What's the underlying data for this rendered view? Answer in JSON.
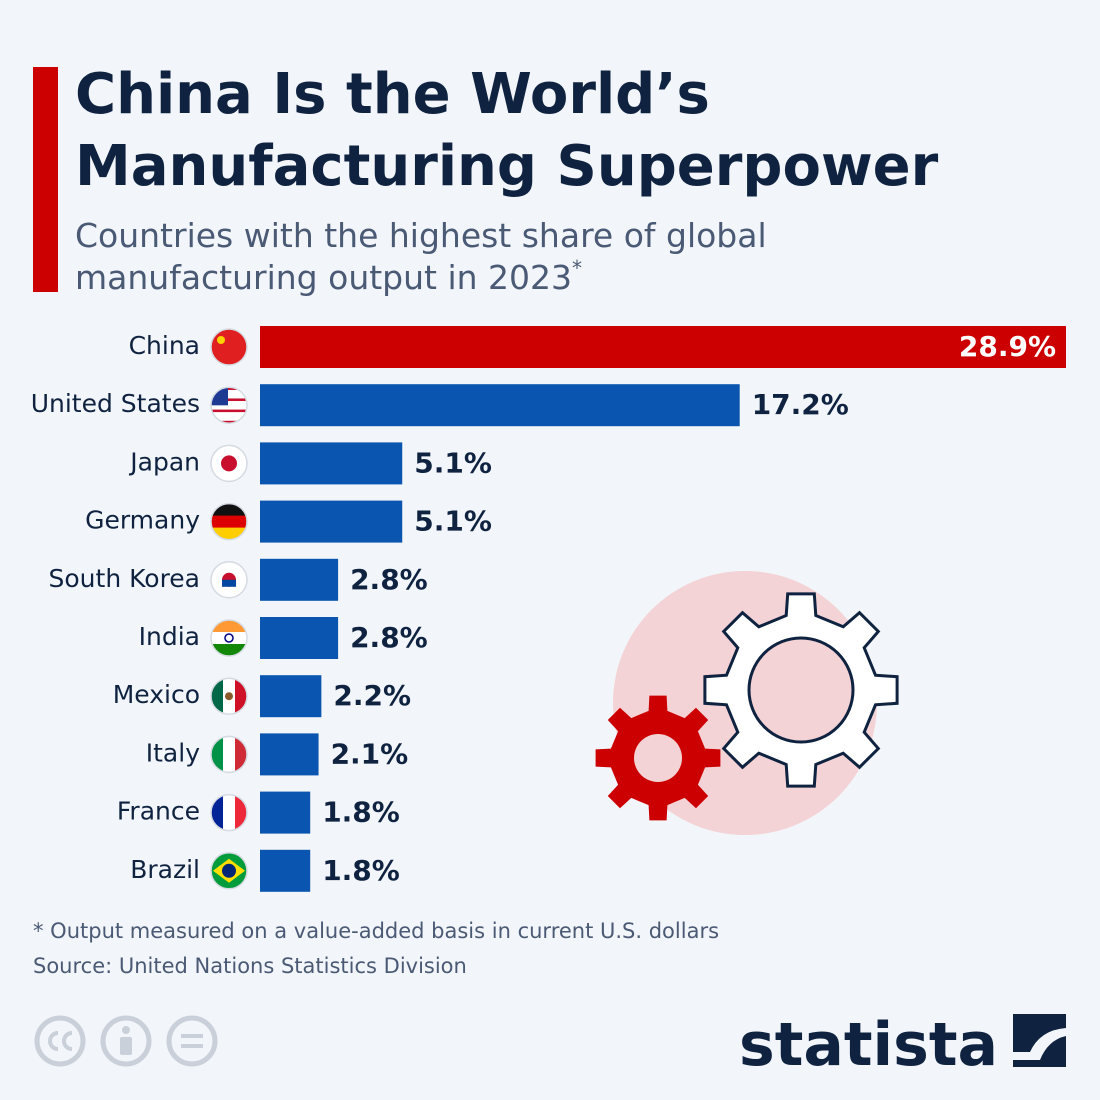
{
  "chart_data": {
    "type": "bar",
    "title": [
      "China Is the World’s",
      "Manufacturing Superpower"
    ],
    "subtitle": [
      "Countries with the highest share of global",
      "manufacturing output in 2023"
    ],
    "subtitle_note": "*",
    "categories": [
      "China",
      "United States",
      "Japan",
      "Germany",
      "South Korea",
      "India",
      "Mexico",
      "Italy",
      "France",
      "Brazil"
    ],
    "values": [
      28.9,
      17.2,
      5.1,
      5.1,
      2.8,
      2.8,
      2.2,
      2.1,
      1.8,
      1.8
    ],
    "value_labels": [
      "28.9%",
      "17.2%",
      "5.1%",
      "5.1%",
      "2.8%",
      "2.8%",
      "2.2%",
      "2.1%",
      "1.8%",
      "1.8%"
    ],
    "colors": [
      "#cc0000",
      "#0a55b0",
      "#0a55b0",
      "#0a55b0",
      "#0a55b0",
      "#0a55b0",
      "#0a55b0",
      "#0a55b0",
      "#0a55b0",
      "#0a55b0"
    ],
    "footnote": "* Output measured on a value-added basis in current U.S. dollars",
    "source": "Source: United Nations Statistics Division",
    "brand": "statista"
  }
}
